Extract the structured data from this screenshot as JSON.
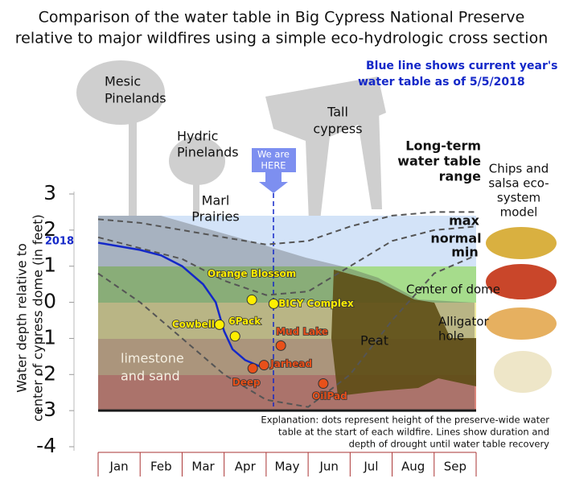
{
  "chart_data": {
    "type": "line",
    "title": [
      "Comparison of the water table in Big Cypress National Preserve",
      "relative to major wildfires using a simple eco-hydrologic cross section"
    ],
    "subtitle": [
      "Blue line shows current year's",
      "water table as of 5/5/2018"
    ],
    "y_label": [
      "Water depth relative to",
      "center of cypress dome (in feet)"
    ],
    "categories": [
      "Jan",
      "Feb",
      "Mar",
      "Apr",
      "May",
      "Jun",
      "Jul",
      "Aug",
      "Sep"
    ],
    "xlim": [
      0,
      9
    ],
    "ylim": [
      -4,
      3
    ],
    "yticks": [
      -4,
      -3,
      -2,
      -1,
      0,
      1,
      2,
      3
    ],
    "series": [
      {
        "name": "2018",
        "color": "#1428c8",
        "dash": false,
        "x": [
          0,
          0.5,
          1,
          1.5,
          2,
          2.5,
          2.8,
          3,
          3.2,
          3.5,
          3.9
        ],
        "values": [
          1.65,
          1.55,
          1.45,
          1.3,
          1.0,
          0.5,
          0.0,
          -0.8,
          -1.3,
          -1.6,
          -1.8
        ]
      },
      {
        "name": "max",
        "color": "#555555",
        "dash": true,
        "x": [
          0,
          1,
          2,
          3,
          4,
          5,
          6,
          7,
          8,
          9
        ],
        "values": [
          2.3,
          2.2,
          2.0,
          1.8,
          1.6,
          1.7,
          2.1,
          2.4,
          2.5,
          2.5
        ]
      },
      {
        "name": "normal",
        "color": "#555555",
        "dash": true,
        "x": [
          0,
          1,
          2,
          3,
          4,
          5,
          6,
          7,
          8,
          9
        ],
        "values": [
          1.8,
          1.5,
          1.2,
          0.6,
          0.2,
          0.3,
          1.0,
          1.7,
          2.0,
          2.1
        ]
      },
      {
        "name": "min",
        "color": "#555555",
        "dash": true,
        "x": [
          0,
          1,
          2,
          3,
          4,
          5,
          6,
          7,
          8,
          9
        ],
        "values": [
          0.8,
          0.0,
          -1.0,
          -2.0,
          -2.7,
          -2.9,
          -2.0,
          -0.5,
          0.8,
          1.3
        ]
      }
    ],
    "fires": {
      "labels": [
        "Orange Blossom",
        "Cowbell",
        "6Pack",
        "BICY Complex",
        "Mud Lake",
        "Jarhead",
        "Deep",
        "OilPad"
      ],
      "x": [
        3.66,
        2.89,
        3.26,
        4.18,
        4.35,
        3.95,
        3.68,
        5.36
      ],
      "values": [
        0.07,
        -0.62,
        -0.94,
        -0.04,
        -1.2,
        -1.74,
        -1.83,
        -2.25
      ],
      "colors": [
        "#ffee00",
        "#ffee00",
        "#ffee00",
        "#ffee00",
        "#e8501a",
        "#e8501a",
        "#e8501a",
        "#e8501a"
      ]
    },
    "labels": {
      "mesic": [
        "Mesic",
        "Pinelands"
      ],
      "hydric": [
        "Hydric",
        "Pinelands"
      ],
      "tall": [
        "Tall",
        "cypress"
      ],
      "marl": [
        "Marl",
        "Prairies"
      ],
      "range": [
        "Long-term",
        "water table",
        "range"
      ],
      "model": [
        "Chips and",
        "salsa eco-",
        "system",
        "model"
      ],
      "dome": "Center of dome",
      "gator": [
        "Alligator",
        "hole"
      ],
      "peat": "Peat",
      "limestone": [
        "limestone",
        "and sand"
      ],
      "here": [
        "We are",
        "HERE"
      ]
    },
    "explanation": [
      "Explanation: dots represent height of the preserve-wide water",
      "table at the start of each wildfire.  Lines show duration and",
      "depth of drought until water table recovery"
    ]
  }
}
